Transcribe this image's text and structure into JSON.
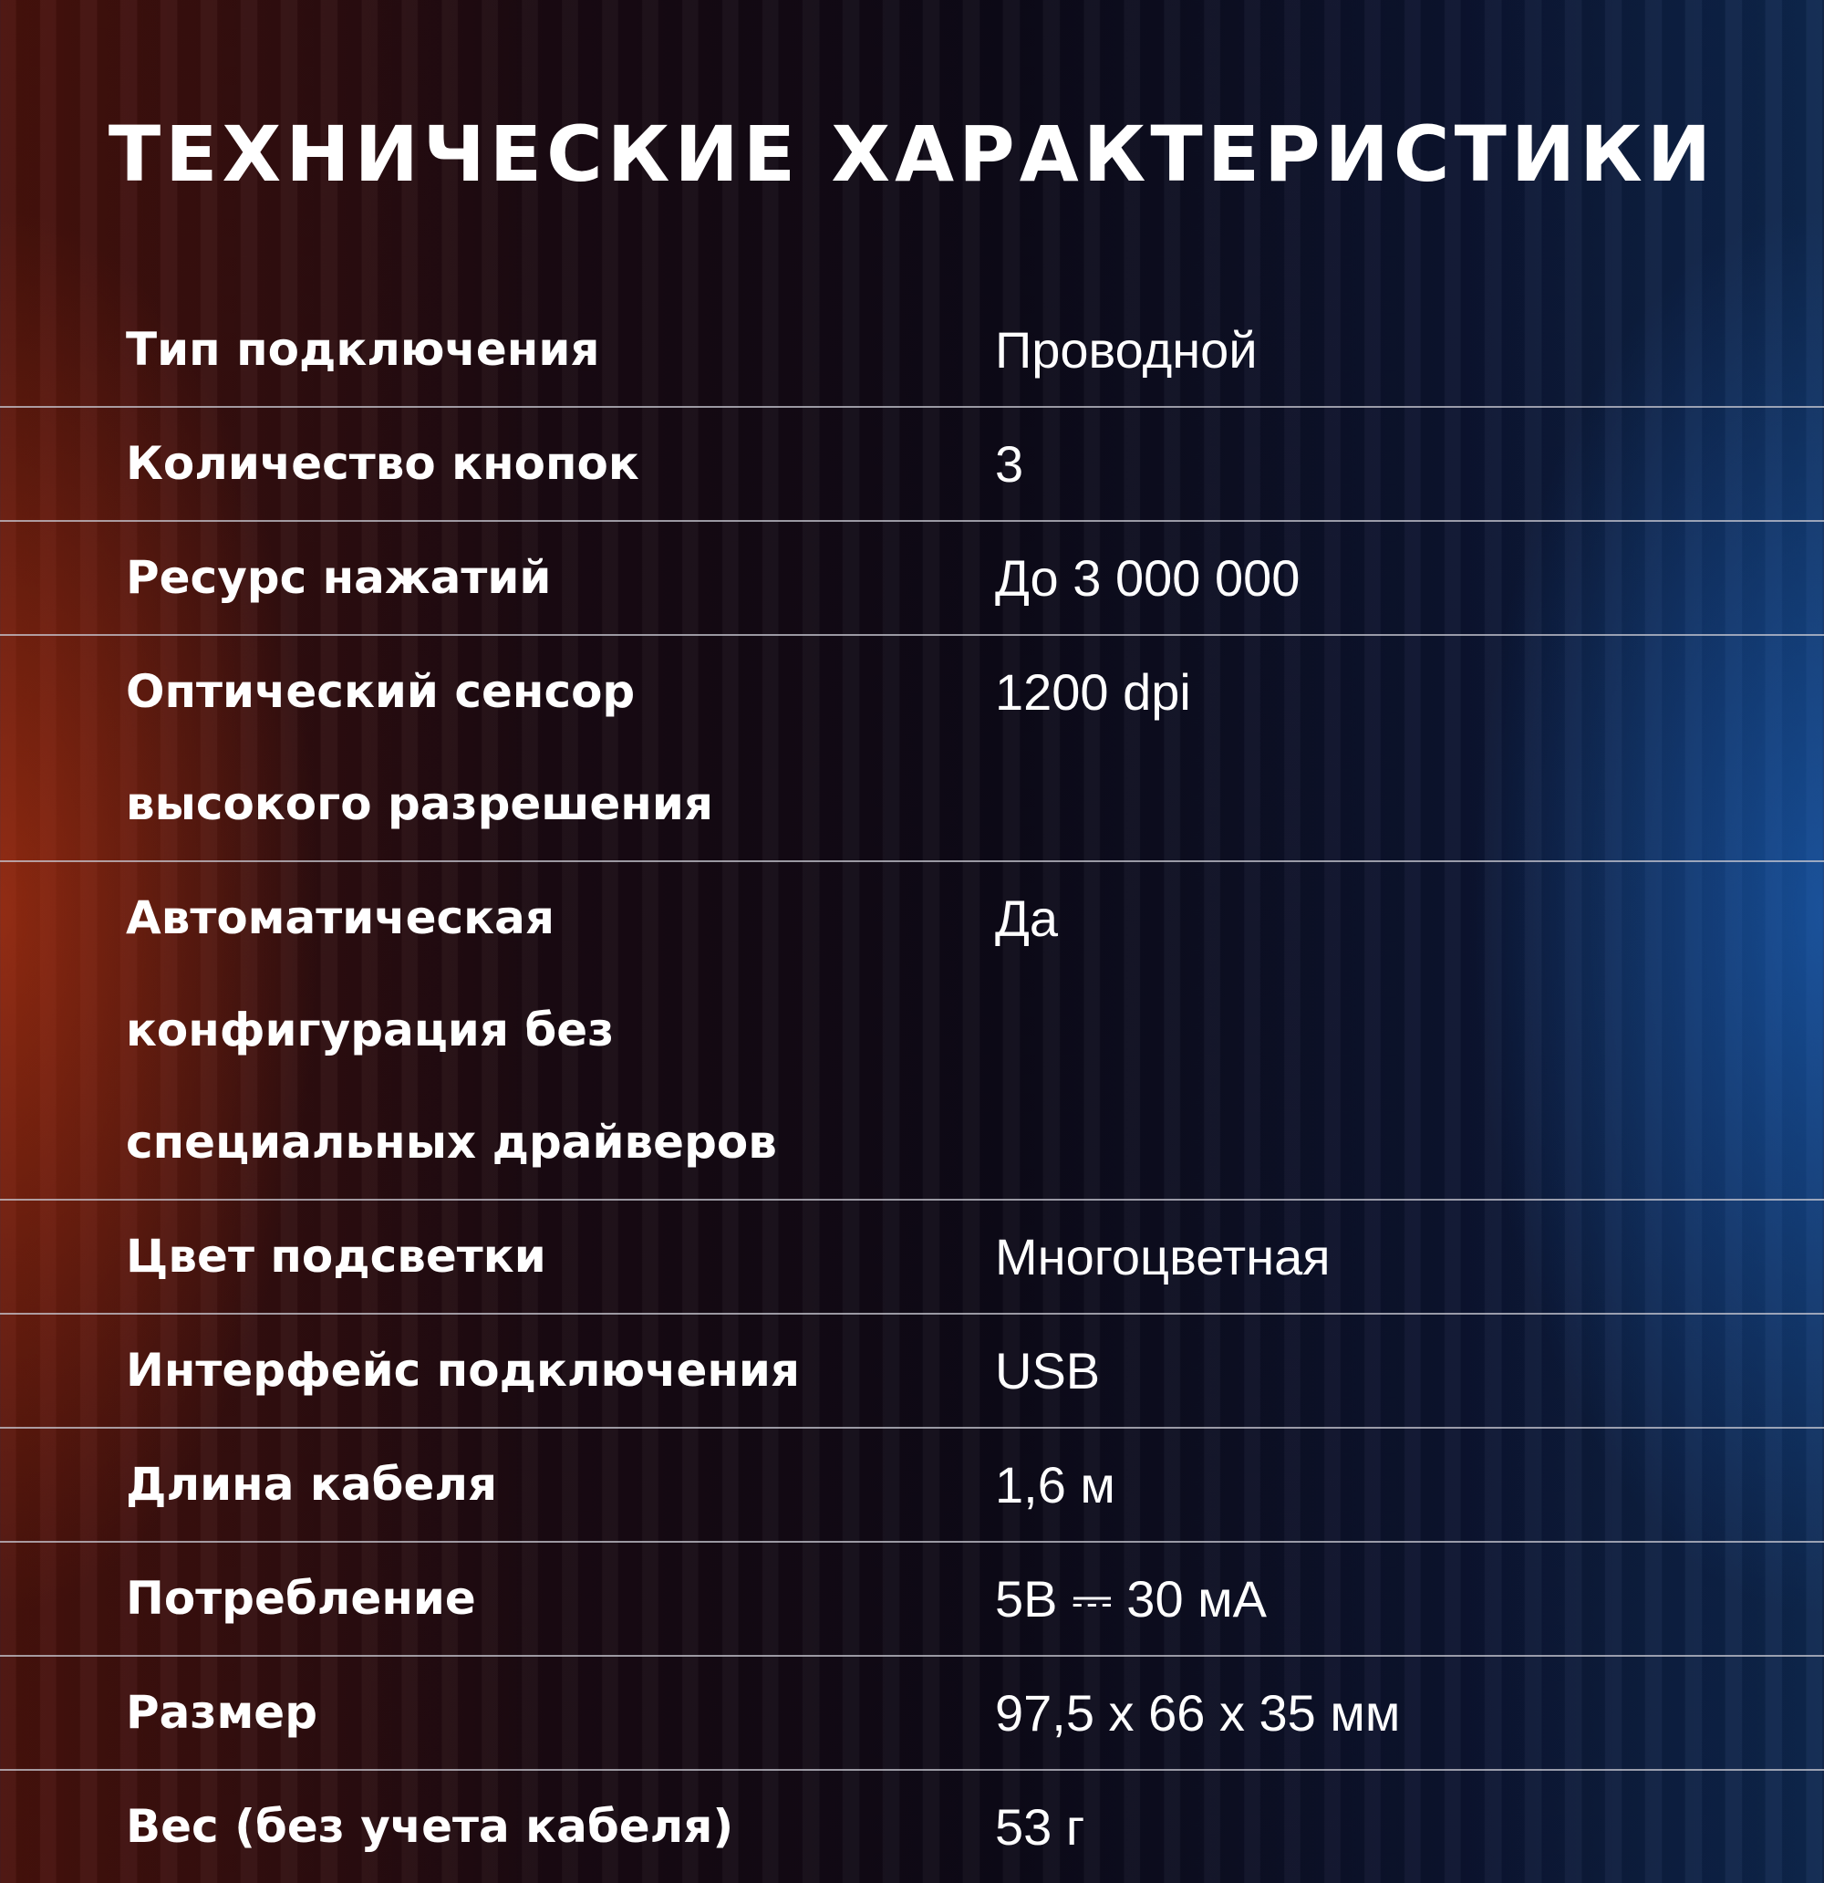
{
  "title": "ТЕХНИЧЕСКИЕ ХАРАКТЕРИСТИКИ",
  "specs": [
    {
      "label": "Тип подключения",
      "value": "Проводной"
    },
    {
      "label": "Количество кнопок",
      "value": "3"
    },
    {
      "label": "Ресурс нажатий",
      "value": "До 3 000 000"
    },
    {
      "label": "Оптический сенсор высокого разрешения",
      "value": "1200 dpi"
    },
    {
      "label": "Автоматическая конфигурация без специальных драйверов",
      "value": "Да"
    },
    {
      "label": "Цвет подсветки",
      "value": "Многоцветная"
    },
    {
      "label": "Интерфейс подключения",
      "value": "USB"
    },
    {
      "label": "Длина кабеля",
      "value": "1,6 м"
    },
    {
      "label": "Потребление",
      "value": "5В ⎓ 30 мА"
    },
    {
      "label": "Размер",
      "value": "97,5 x 66 x 35 мм"
    },
    {
      "label": "Вес (без учета кабеля)",
      "value": "53 г"
    }
  ]
}
